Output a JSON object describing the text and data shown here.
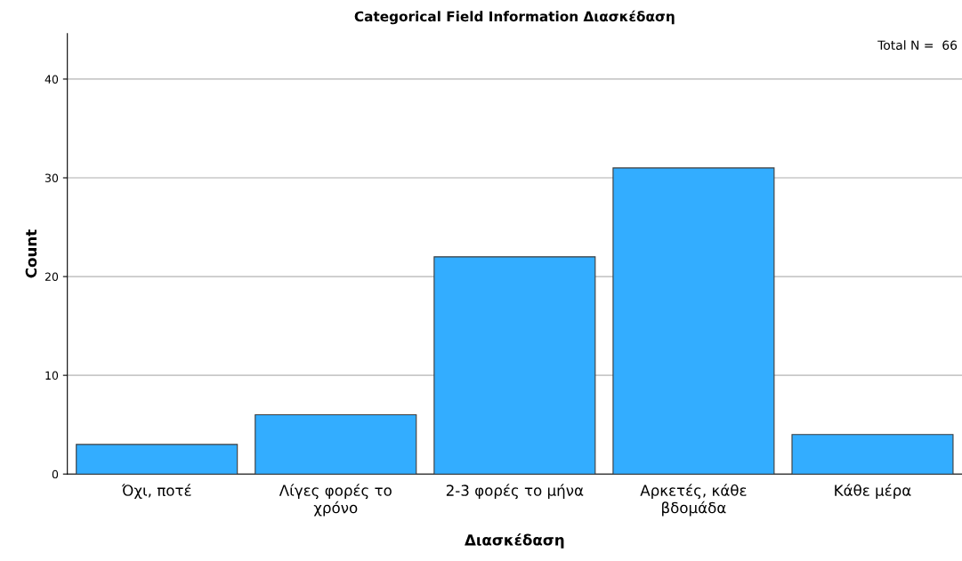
{
  "chart_data": {
    "type": "bar",
    "title": "Categorical Field Information Διασκέδαση",
    "xlabel": "Διασκέδαση",
    "ylabel": "Count",
    "categories": [
      "Όχι, ποτέ",
      "Λίγες φορές το\nχρόνο",
      "2-3 φορές το μήνα",
      "Αρκετές, κάθε\nβδομάδα",
      "Κάθε μέρα"
    ],
    "values": [
      3,
      6,
      22,
      31,
      4
    ],
    "color": "#33adff",
    "ylim": [
      0,
      44.6
    ],
    "yticks": [
      0,
      10,
      20,
      30,
      40
    ],
    "grid": "y",
    "annotations": [
      "Total N =  66"
    ]
  }
}
